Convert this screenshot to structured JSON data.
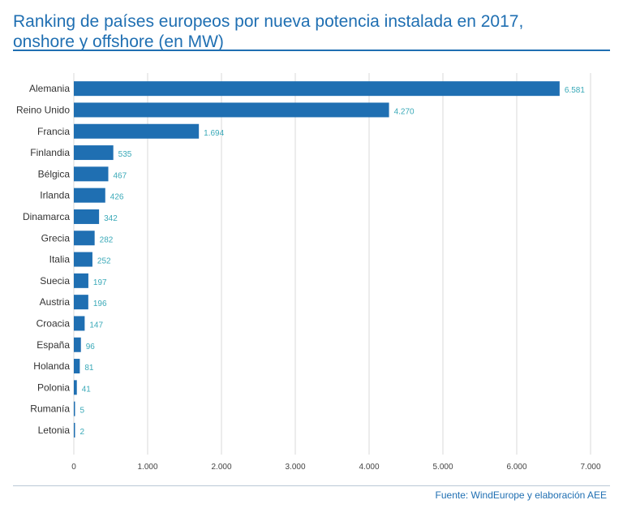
{
  "title_line1": "Ranking de países europeos por nueva potencia instalada en 2017,",
  "title_line2": "onshore y offshore (en MW)",
  "source": "Fuente: WindEurope y elaboración AEE",
  "colors": {
    "bar": "#1f6fb2",
    "label": "#3aa9b8",
    "title": "#1f6fb2",
    "grid": "#d9d9d9"
  },
  "chart_data": {
    "type": "bar",
    "orientation": "horizontal",
    "categories": [
      "Alemania",
      "Reino Unido",
      "Francia",
      "Finlandia",
      "Bélgica",
      "Irlanda",
      "Dinamarca",
      "Grecia",
      "Italia",
      "Suecia",
      "Austria",
      "Croacia",
      "España",
      "Holanda",
      "Polonia",
      "Rumanía",
      "Letonia"
    ],
    "values": [
      6581,
      4270,
      1694,
      535,
      467,
      426,
      342,
      282,
      252,
      197,
      196,
      147,
      96,
      81,
      41,
      5,
      2
    ],
    "value_labels": [
      "6.581",
      "4.270",
      "1.694",
      "535",
      "467",
      "426",
      "342",
      "282",
      "252",
      "197",
      "196",
      "147",
      "96",
      "81",
      "41",
      "5",
      "2"
    ],
    "xlim": [
      0,
      7000
    ],
    "xticks": [
      0,
      1000,
      2000,
      3000,
      4000,
      5000,
      6000,
      7000
    ],
    "xtick_labels": [
      "0",
      "1.000",
      "2.000",
      "3.000",
      "4.000",
      "5.000",
      "6.000",
      "7.000"
    ],
    "grid": true
  }
}
